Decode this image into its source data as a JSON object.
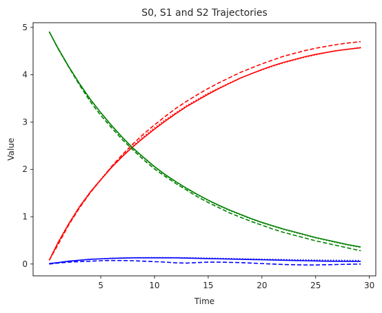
{
  "chart_data": {
    "type": "line",
    "title": "S0, S1 and S2 Trajectories",
    "xlabel": "Time",
    "ylabel": "Value",
    "xlim": [
      -1.3,
      30.6
    ],
    "ylim": [
      -0.25,
      5.1
    ],
    "xticks": [
      5,
      10,
      15,
      20,
      25,
      30
    ],
    "yticks": [
      0,
      1,
      2,
      3,
      4,
      5
    ],
    "grid": false,
    "legend": "none",
    "x": [
      0.2,
      1,
      2,
      3,
      4,
      5,
      6,
      7,
      8,
      9,
      10,
      11,
      12,
      13,
      14,
      15,
      16,
      17,
      18,
      19,
      20,
      21,
      22,
      23,
      24,
      25,
      26,
      27,
      28,
      29.2
    ],
    "series": [
      {
        "color": "#ff0000",
        "style": "solid",
        "values": [
          0.08,
          0.44,
          0.84,
          1.2,
          1.51,
          1.78,
          2.04,
          2.27,
          2.48,
          2.67,
          2.85,
          3.02,
          3.18,
          3.33,
          3.46,
          3.59,
          3.71,
          3.82,
          3.93,
          4.02,
          4.11,
          4.19,
          4.26,
          4.32,
          4.38,
          4.43,
          4.47,
          4.51,
          4.54,
          4.57
        ]
      },
      {
        "color": "#ff0000",
        "style": "dotted",
        "values": [
          0.08,
          0.45,
          0.85,
          1.21,
          1.52,
          1.79,
          2.05,
          2.29,
          2.5,
          2.7,
          2.88,
          3.05,
          3.2,
          3.35,
          3.48,
          3.61,
          3.72,
          3.83,
          3.93,
          4.02,
          4.1,
          4.18,
          4.25,
          4.31,
          4.37,
          4.42,
          4.47,
          4.51,
          4.54,
          4.58
        ]
      },
      {
        "color": "#ff0000",
        "style": "dashed",
        "values": [
          0.08,
          0.4,
          0.82,
          1.18,
          1.5,
          1.78,
          2.06,
          2.31,
          2.54,
          2.75,
          2.94,
          3.12,
          3.29,
          3.44,
          3.58,
          3.71,
          3.83,
          3.94,
          4.05,
          4.14,
          4.23,
          4.31,
          4.39,
          4.45,
          4.51,
          4.56,
          4.6,
          4.64,
          4.67,
          4.7
        ]
      },
      {
        "color": "#008000",
        "style": "solid",
        "values": [
          4.91,
          4.57,
          4.18,
          3.82,
          3.49,
          3.2,
          2.93,
          2.68,
          2.45,
          2.25,
          2.06,
          1.89,
          1.74,
          1.6,
          1.47,
          1.35,
          1.24,
          1.14,
          1.05,
          0.96,
          0.88,
          0.81,
          0.74,
          0.68,
          0.62,
          0.56,
          0.51,
          0.46,
          0.41,
          0.36
        ]
      },
      {
        "color": "#008000",
        "style": "dotted",
        "values": [
          4.91,
          4.56,
          4.17,
          3.81,
          3.48,
          3.19,
          2.92,
          2.67,
          2.44,
          2.24,
          2.05,
          1.88,
          1.73,
          1.59,
          1.46,
          1.34,
          1.23,
          1.13,
          1.04,
          0.95,
          0.87,
          0.8,
          0.73,
          0.67,
          0.61,
          0.55,
          0.5,
          0.45,
          0.4,
          0.35
        ]
      },
      {
        "color": "#008000",
        "style": "dashed",
        "values": [
          4.91,
          4.56,
          4.17,
          3.79,
          3.44,
          3.14,
          2.88,
          2.63,
          2.41,
          2.2,
          2.01,
          1.85,
          1.7,
          1.56,
          1.42,
          1.3,
          1.19,
          1.08,
          0.99,
          0.9,
          0.82,
          0.74,
          0.67,
          0.61,
          0.55,
          0.49,
          0.44,
          0.39,
          0.34,
          0.28
        ]
      },
      {
        "color": "#0000ff",
        "style": "solid",
        "values": [
          0.01,
          0.03,
          0.06,
          0.08,
          0.1,
          0.11,
          0.12,
          0.125,
          0.13,
          0.13,
          0.13,
          0.13,
          0.13,
          0.125,
          0.12,
          0.115,
          0.11,
          0.105,
          0.1,
          0.095,
          0.09,
          0.085,
          0.08,
          0.075,
          0.07,
          0.065,
          0.06,
          0.058,
          0.056,
          0.055
        ]
      },
      {
        "color": "#0000ff",
        "style": "dotted",
        "values": [
          0.01,
          0.03,
          0.06,
          0.08,
          0.1,
          0.11,
          0.12,
          0.128,
          0.133,
          0.135,
          0.136,
          0.136,
          0.135,
          0.132,
          0.128,
          0.124,
          0.12,
          0.115,
          0.11,
          0.106,
          0.102,
          0.098,
          0.094,
          0.09,
          0.087,
          0.084,
          0.081,
          0.079,
          0.077,
          0.075
        ]
      },
      {
        "color": "#0000ff",
        "style": "dashed",
        "values": [
          0.0,
          0.02,
          0.04,
          0.05,
          0.06,
          0.07,
          0.075,
          0.075,
          0.07,
          0.06,
          0.05,
          0.04,
          0.025,
          0.02,
          0.03,
          0.04,
          0.04,
          0.035,
          0.03,
          0.02,
          0.01,
          0.0,
          -0.01,
          -0.015,
          -0.02,
          -0.02,
          -0.015,
          -0.01,
          -0.005,
          0.0
        ]
      }
    ]
  }
}
